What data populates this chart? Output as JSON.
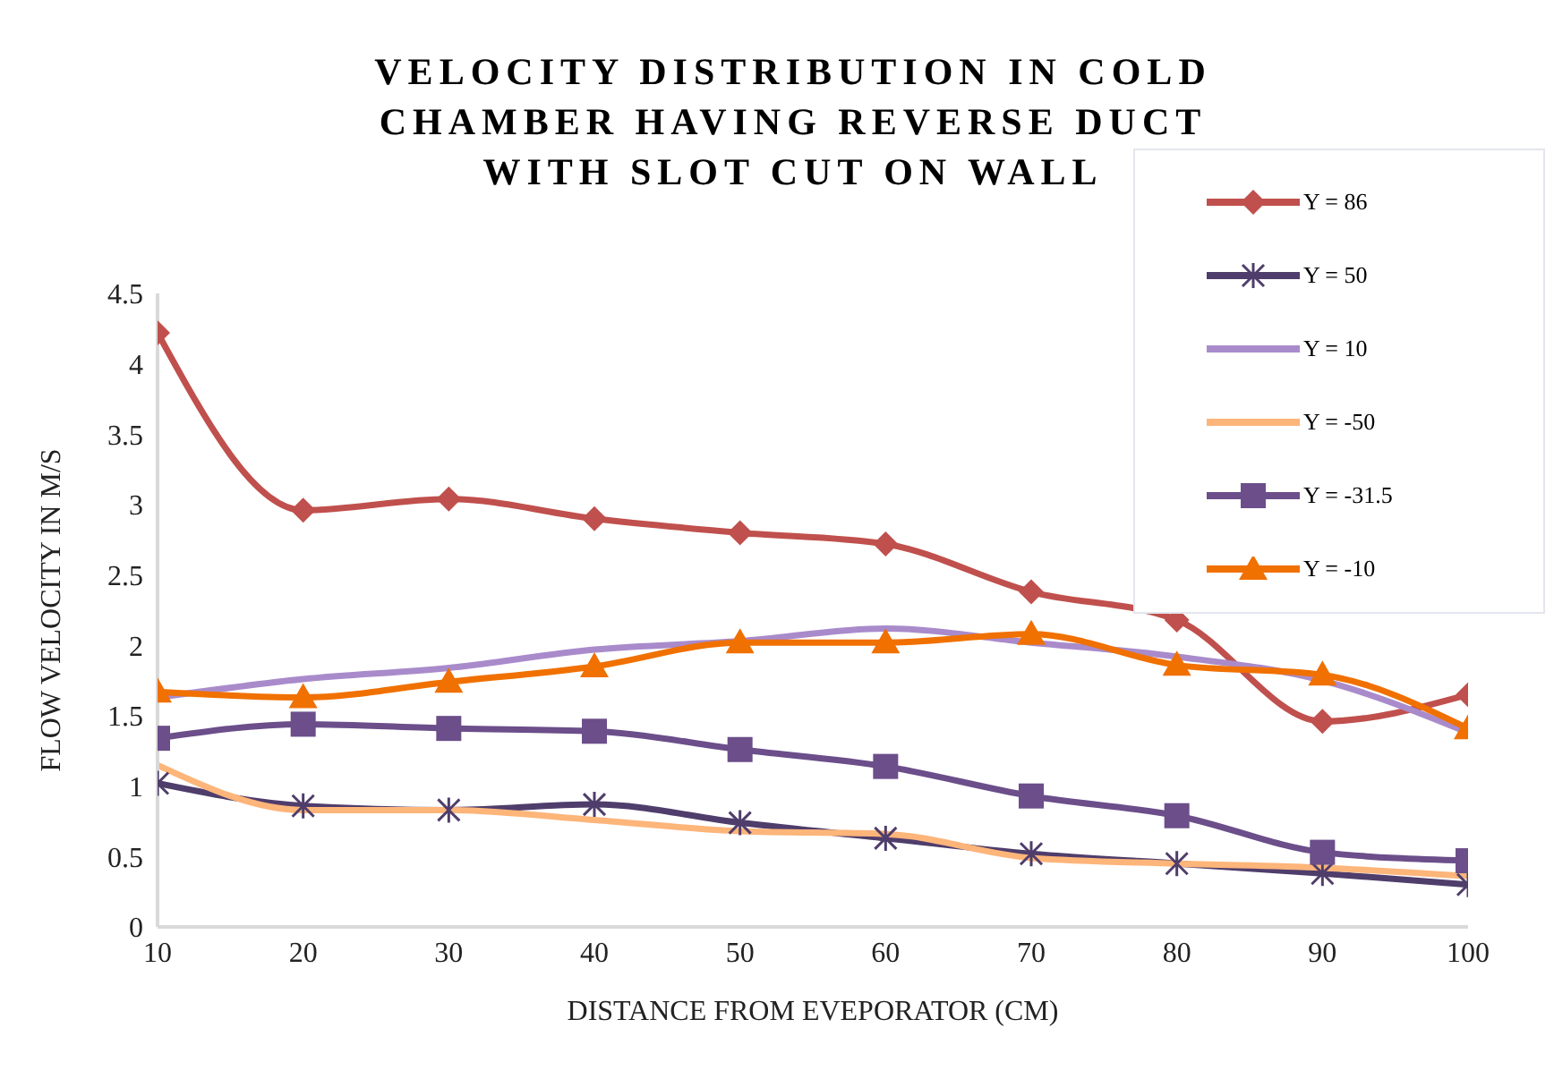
{
  "chart_data": {
    "type": "line",
    "title": "VELOCITY DISTRIBUTION IN COLD CHAMBER HAVING REVERSE DUCT WITH SLOT CUT ON WALL",
    "xlabel": "DISTANCE FROM EVEPORATOR  (CM)",
    "ylabel": "FLOW VELOCITY IN M/S",
    "x": [
      10,
      20,
      30,
      40,
      50,
      60,
      70,
      80,
      90,
      100
    ],
    "xlim": [
      10,
      100
    ],
    "xticks": [
      10,
      20,
      30,
      40,
      50,
      60,
      70,
      80,
      90,
      100
    ],
    "ylim": [
      0,
      4.5
    ],
    "yticks": [
      0,
      0.5,
      1,
      1.5,
      2,
      2.5,
      3,
      3.5,
      4,
      4.5
    ],
    "grid": false,
    "legend": "top right",
    "line_style": "solid",
    "series": [
      {
        "name": "Y = 86",
        "color": "#c0504d",
        "marker": "diamond",
        "values": [
          4.22,
          2.96,
          3.04,
          2.9,
          2.8,
          2.72,
          2.38,
          2.18,
          1.46,
          1.65
        ]
      },
      {
        "name": "Y = 50",
        "color": "#4f3d6b",
        "marker": "cross",
        "values": [
          1.02,
          0.86,
          0.83,
          0.87,
          0.74,
          0.63,
          0.52,
          0.45,
          0.38,
          0.3
        ]
      },
      {
        "name": "Y = 10",
        "color": "#a98bcb",
        "marker": "none",
        "values": [
          1.63,
          1.76,
          1.84,
          1.97,
          2.03,
          2.12,
          2.02,
          1.92,
          1.75,
          1.38
        ]
      },
      {
        "name": "Y = -50",
        "color": "#fdb57a",
        "marker": "none",
        "values": [
          1.15,
          0.83,
          0.83,
          0.76,
          0.68,
          0.66,
          0.49,
          0.45,
          0.42,
          0.36
        ]
      },
      {
        "name": "Y = -31.5",
        "color": "#6b4e8a",
        "marker": "square",
        "values": [
          1.34,
          1.44,
          1.41,
          1.39,
          1.26,
          1.14,
          0.93,
          0.79,
          0.53,
          0.47
        ]
      },
      {
        "name": "Y = -10",
        "color": "#f07000",
        "marker": "triangle",
        "values": [
          1.67,
          1.63,
          1.74,
          1.85,
          2.02,
          2.02,
          2.08,
          1.86,
          1.79,
          1.41
        ]
      }
    ]
  }
}
